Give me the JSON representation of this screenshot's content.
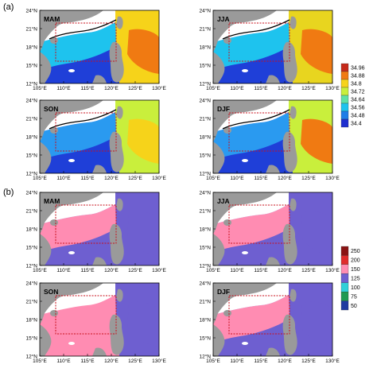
{
  "panel_letters": [
    "(a)",
    "(b)"
  ],
  "season_labels": [
    "MAM",
    "JJA",
    "SON",
    "DJF"
  ],
  "lat_ticks": [
    "12°N",
    "15°N",
    "18°N",
    "21°N",
    "24°N"
  ],
  "lon_ticks": [
    "105°E",
    "110°E",
    "115°E",
    "120°E",
    "125°E",
    "130°E"
  ],
  "colors": {
    "land": "#9a9a9a",
    "box": "#c8101c",
    "contour": "#000000"
  },
  "chart_data": [
    {
      "type": "heatmap",
      "panel": "(a)",
      "subplots": [
        "MAM",
        "JJA",
        "SON",
        "DJF"
      ],
      "xlim": [
        105,
        130
      ],
      "ylim": [
        12,
        24
      ],
      "colorbar": {
        "ticks": [
          "34.96",
          "34.88",
          "34.8",
          "34.72",
          "34.64",
          "34.56",
          "34.48",
          "34.4"
        ],
        "colors": [
          "#c62a1a",
          "#f07a12",
          "#f6d31a",
          "#c9ef3c",
          "#5fe1a6",
          "#1ec3ee",
          "#1f7de8",
          "#1f2fcf"
        ]
      },
      "contour_label": "34.56"
    },
    {
      "type": "heatmap",
      "panel": "(b)",
      "subplots": [
        "MAM",
        "JJA",
        "SON",
        "DJF"
      ],
      "xlim": [
        105,
        130
      ],
      "ylim": [
        12,
        24
      ],
      "colorbar": {
        "ticks": [
          "250",
          "200",
          "150",
          "125",
          "100",
          "75",
          "50"
        ],
        "colors": [
          "#8a1414",
          "#e02c2c",
          "#ff8cb2",
          "#6e5fd0",
          "#2fd0d8",
          "#1e9a52",
          "#1e3aa0"
        ]
      }
    }
  ]
}
